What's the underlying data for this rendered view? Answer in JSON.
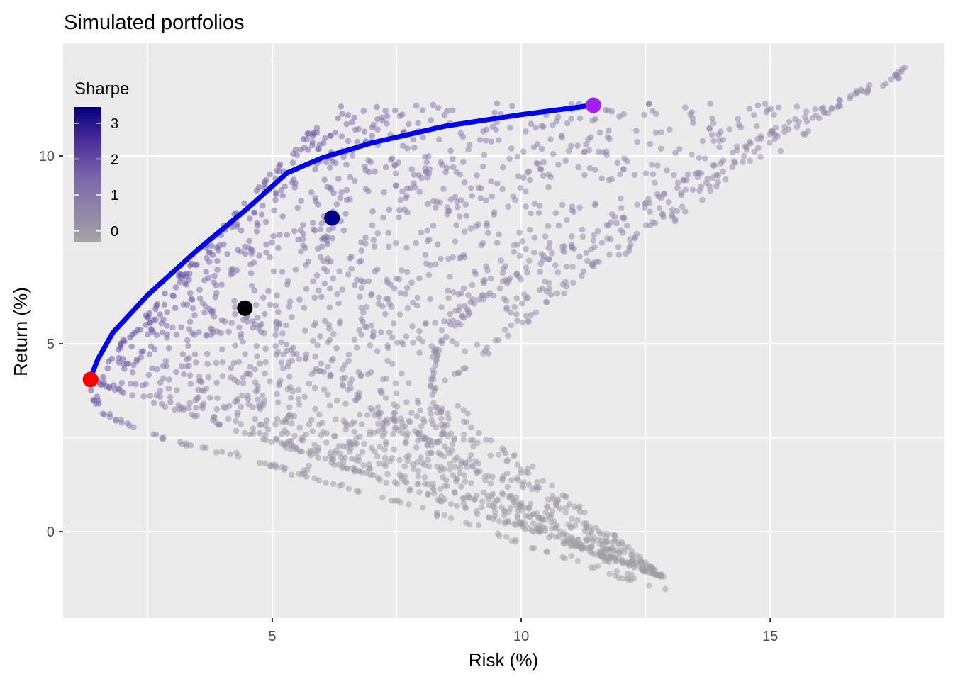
{
  "chart_data": {
    "type": "scatter",
    "title": "Simulated portfolios",
    "xlabel": "Risk (%)",
    "ylabel": "Return (%)",
    "xlim": [
      0.8,
      18.5
    ],
    "ylim": [
      -2.3,
      13.0
    ],
    "x_ticks": [
      5,
      10,
      15
    ],
    "y_ticks": [
      0,
      5,
      10
    ],
    "grid": true,
    "background": "#EBEBEB",
    "legend": {
      "title": "Sharpe",
      "placement": "top-left (inside plot)",
      "ticks": [
        0,
        1,
        2,
        3
      ],
      "range": [
        -0.3,
        3.45
      ],
      "color_low": "#A3A3A3",
      "color_high": "#000080"
    },
    "frontier": {
      "color": "#0000FF",
      "x": [
        1.35,
        1.5,
        1.8,
        2.5,
        3.5,
        4.5,
        5.3,
        6.0,
        7.0,
        8.5,
        10.0,
        11.45
      ],
      "y": [
        4.1,
        4.6,
        5.3,
        6.3,
        7.5,
        8.6,
        9.55,
        9.95,
        10.35,
        10.8,
        11.1,
        11.35
      ]
    },
    "highlights": [
      {
        "x": 1.35,
        "y": 4.05,
        "color": "#FF0000"
      },
      {
        "x": 11.45,
        "y": 11.35,
        "color": "#A020F0"
      },
      {
        "x": 6.2,
        "y": 8.35,
        "color": "#00008B"
      },
      {
        "x": 4.45,
        "y": 5.95,
        "color": "#000000"
      }
    ],
    "bands": [
      {
        "x": [
          1.35,
          1.6,
          2.0,
          2.8,
          3.6,
          4.4,
          5.2,
          6.0,
          7.0,
          8.0,
          9.0,
          10.0,
          11.0,
          12.0,
          13.0
        ],
        "y": [
          3.8,
          3.2,
          2.9,
          2.5,
          2.2,
          2.0,
          1.7,
          1.4,
          1.0,
          0.6,
          0.2,
          -0.3,
          -0.7,
          -1.2,
          -1.6
        ]
      },
      {
        "x": [
          4.4,
          5.0,
          5.6,
          6.2,
          6.8,
          7.4,
          8.0,
          8.6,
          9.2,
          9.8,
          10.4,
          11.0,
          11.6,
          12.2
        ],
        "y": [
          5.9,
          5.2,
          4.6,
          4.1,
          3.5,
          3.0,
          2.5,
          2.0,
          1.5,
          0.9,
          0.4,
          -0.2,
          -0.7,
          -1.2
        ]
      },
      {
        "x": [
          8.7,
          8.4,
          8.2,
          8.2,
          8.3,
          8.6,
          9.0,
          9.6,
          10.3,
          11.0,
          11.8,
          12.6,
          13.4,
          14.2,
          15.0,
          15.8,
          16.6,
          17.4,
          17.9
        ],
        "y": [
          2.2,
          3.0,
          3.6,
          4.2,
          4.8,
          5.4,
          6.0,
          6.6,
          7.1,
          7.6,
          8.2,
          8.8,
          9.4,
          10.0,
          10.6,
          11.1,
          11.6,
          12.1,
          12.4
        ]
      },
      {
        "x": [
          5.3,
          6.2,
          7.1,
          8.0,
          8.9,
          9.8,
          10.7,
          11.5,
          12.4,
          13.3,
          14.2,
          15.1,
          16.0,
          16.8,
          17.6
        ],
        "y": [
          1.4,
          2.0,
          2.7,
          3.5,
          4.4,
          5.3,
          6.3,
          7.2,
          8.0,
          8.9,
          9.7,
          10.5,
          11.1,
          11.6,
          12.1
        ]
      }
    ],
    "point_style": {
      "radius": 4.3,
      "opacity": 0.5
    }
  }
}
